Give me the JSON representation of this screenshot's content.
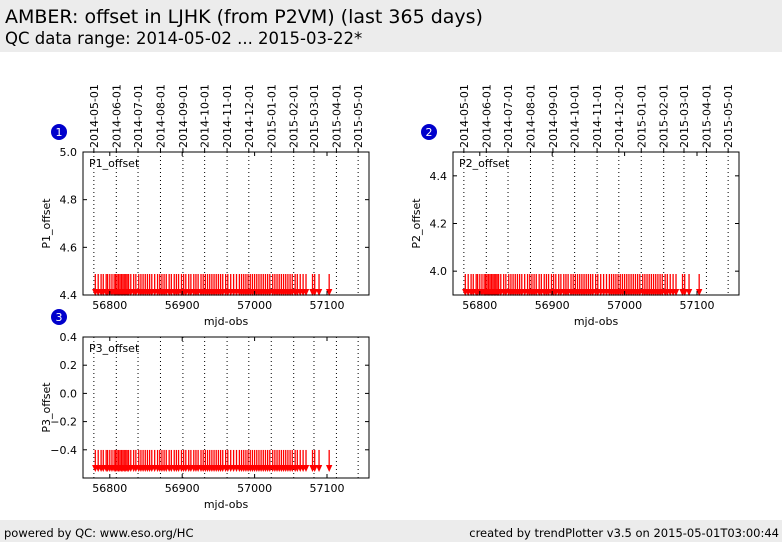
{
  "header": {
    "title": "AMBER: offset in LJHK (from P2VM) (last 365 days)",
    "subtitle": "QC data range: 2014-05-02 ... 2015-03-22*"
  },
  "footer": {
    "left": "powered by QC: www.eso.org/HC",
    "right": "created by trendPlotter v3.5 on 2015-05-01T03:00:44"
  },
  "colors": {
    "data": "#ff0000",
    "marker": "#0000cc",
    "header_bg": "#ececec"
  },
  "chart_data": [
    {
      "type": "scatter",
      "panel_number": "1",
      "title": "P1_offset",
      "xlabel": "mjd-obs",
      "ylabel": "P1_offset",
      "xlim": [
        56763,
        57158
      ],
      "ylim": [
        4.4,
        5.0
      ],
      "xticks": [
        56800,
        56900,
        57000,
        57100
      ],
      "yticks": [
        4.4,
        4.6,
        4.8,
        5.0
      ],
      "ytick_labels": [
        "4.4",
        "4.6",
        "4.8",
        "5.0"
      ],
      "date_ticks": [
        {
          "mjd": 56778,
          "label": "2014-05-01"
        },
        {
          "mjd": 56809,
          "label": "2014-06-01"
        },
        {
          "mjd": 56839,
          "label": "2014-07-01"
        },
        {
          "mjd": 56870,
          "label": "2014-08-01"
        },
        {
          "mjd": 56901,
          "label": "2014-09-01"
        },
        {
          "mjd": 56931,
          "label": "2014-10-01"
        },
        {
          "mjd": 56962,
          "label": "2014-11-01"
        },
        {
          "mjd": 56992,
          "label": "2014-12-01"
        },
        {
          "mjd": 57023,
          "label": "2015-01-01"
        },
        {
          "mjd": 57054,
          "label": "2015-02-01"
        },
        {
          "mjd": 57082,
          "label": "2015-03-01"
        },
        {
          "mjd": 57113,
          "label": "2015-04-01"
        },
        {
          "mjd": 57143,
          "label": "2015-05-01"
        }
      ],
      "grid": "vertical-dotted",
      "marker": "down-arrow",
      "y_value": 4.4,
      "points": [
        56780,
        56784,
        56788,
        56791,
        56795,
        56797,
        56800,
        56803,
        56806,
        56808,
        56810,
        56812,
        56814,
        56816,
        56818,
        56820,
        56822,
        56824,
        56826,
        56829,
        56833,
        56836,
        56840,
        56843,
        56846,
        56849,
        56852,
        56855,
        56858,
        56862,
        56866,
        56869,
        56872,
        56875,
        56878,
        56882,
        56885,
        56889,
        56892,
        56895,
        56899,
        56902,
        56905,
        56909,
        56912,
        56916,
        56919,
        56922,
        56926,
        56929,
        56932,
        56935,
        56938,
        56941,
        56944,
        56947,
        56950,
        56953,
        56956,
        56960,
        56963,
        56967,
        56971,
        56975,
        56979,
        56982,
        56985,
        56988,
        56991,
        56994,
        56997,
        57000,
        57003,
        57006,
        57009,
        57012,
        57015,
        57018,
        57021,
        57025,
        57028,
        57031,
        57034,
        57037,
        57040,
        57043,
        57046,
        57049,
        57052,
        57056,
        57059,
        57063,
        57067,
        57071,
        57080,
        57083,
        57089,
        57103
      ]
    },
    {
      "type": "scatter",
      "panel_number": "2",
      "title": "P2_offset",
      "xlabel": "mjd-obs",
      "ylabel": "P2_offset",
      "xlim": [
        56763,
        57158
      ],
      "ylim": [
        3.9,
        4.5
      ],
      "xticks": [
        56800,
        56900,
        57000,
        57100
      ],
      "yticks": [
        4.0,
        4.2,
        4.4
      ],
      "ytick_labels": [
        "4.0",
        "4.2",
        "4.4"
      ],
      "date_ticks": [
        {
          "mjd": 56778,
          "label": "2014-05-01"
        },
        {
          "mjd": 56809,
          "label": "2014-06-01"
        },
        {
          "mjd": 56839,
          "label": "2014-07-01"
        },
        {
          "mjd": 56870,
          "label": "2014-08-01"
        },
        {
          "mjd": 56901,
          "label": "2014-09-01"
        },
        {
          "mjd": 56931,
          "label": "2014-10-01"
        },
        {
          "mjd": 56962,
          "label": "2014-11-01"
        },
        {
          "mjd": 56992,
          "label": "2014-12-01"
        },
        {
          "mjd": 57023,
          "label": "2015-01-01"
        },
        {
          "mjd": 57054,
          "label": "2015-02-01"
        },
        {
          "mjd": 57082,
          "label": "2015-03-01"
        },
        {
          "mjd": 57113,
          "label": "2015-04-01"
        },
        {
          "mjd": 57143,
          "label": "2015-05-01"
        }
      ],
      "grid": "vertical-dotted",
      "marker": "down-arrow",
      "y_value": 3.9,
      "points": [
        56780,
        56784,
        56788,
        56791,
        56795,
        56797,
        56800,
        56803,
        56806,
        56808,
        56810,
        56812,
        56814,
        56816,
        56818,
        56820,
        56822,
        56824,
        56826,
        56829,
        56833,
        56836,
        56840,
        56843,
        56846,
        56849,
        56852,
        56855,
        56858,
        56862,
        56866,
        56869,
        56872,
        56875,
        56878,
        56882,
        56885,
        56889,
        56892,
        56895,
        56899,
        56902,
        56905,
        56909,
        56912,
        56916,
        56919,
        56922,
        56926,
        56929,
        56932,
        56935,
        56938,
        56941,
        56944,
        56947,
        56950,
        56953,
        56956,
        56960,
        56963,
        56967,
        56971,
        56975,
        56979,
        56982,
        56985,
        56988,
        56991,
        56994,
        56997,
        57000,
        57003,
        57006,
        57009,
        57012,
        57015,
        57018,
        57021,
        57025,
        57028,
        57031,
        57034,
        57037,
        57040,
        57043,
        57046,
        57049,
        57052,
        57056,
        57059,
        57063,
        57067,
        57071,
        57080,
        57083,
        57089,
        57103
      ]
    },
    {
      "type": "scatter",
      "panel_number": "3",
      "title": "P3_offset",
      "xlabel": "mjd-obs",
      "ylabel": "P3_offset",
      "xlim": [
        56763,
        57158
      ],
      "ylim": [
        -0.6,
        0.4
      ],
      "xticks": [
        56800,
        56900,
        57000,
        57100
      ],
      "yticks": [
        -0.4,
        -0.2,
        0.0,
        0.2,
        0.4
      ],
      "ytick_labels": [
        "−0.4",
        "−0.2",
        "0.0",
        "0.2",
        "0.4"
      ],
      "date_ticks": [
        {
          "mjd": 56778,
          "label": "2014-05-01"
        },
        {
          "mjd": 56809,
          "label": "2014-06-01"
        },
        {
          "mjd": 56839,
          "label": "2014-07-01"
        },
        {
          "mjd": 56870,
          "label": "2014-08-01"
        },
        {
          "mjd": 56901,
          "label": "2014-09-01"
        },
        {
          "mjd": 56931,
          "label": "2014-10-01"
        },
        {
          "mjd": 56962,
          "label": "2014-11-01"
        },
        {
          "mjd": 56992,
          "label": "2014-12-01"
        },
        {
          "mjd": 57023,
          "label": "2015-01-01"
        },
        {
          "mjd": 57054,
          "label": "2015-02-01"
        },
        {
          "mjd": 57082,
          "label": "2015-03-01"
        },
        {
          "mjd": 57113,
          "label": "2015-04-01"
        },
        {
          "mjd": 57143,
          "label": "2015-05-01"
        }
      ],
      "grid": "vertical-dotted",
      "marker": "down-arrow",
      "y_value": -0.55,
      "points": [
        56780,
        56784,
        56788,
        56791,
        56795,
        56797,
        56800,
        56803,
        56806,
        56808,
        56810,
        56812,
        56814,
        56816,
        56818,
        56820,
        56822,
        56824,
        56826,
        56829,
        56833,
        56836,
        56840,
        56843,
        56846,
        56849,
        56852,
        56855,
        56858,
        56862,
        56866,
        56869,
        56872,
        56875,
        56878,
        56882,
        56885,
        56889,
        56892,
        56895,
        56899,
        56902,
        56905,
        56909,
        56912,
        56916,
        56919,
        56922,
        56926,
        56929,
        56932,
        56935,
        56938,
        56941,
        56944,
        56947,
        56950,
        56953,
        56956,
        56960,
        56963,
        56967,
        56971,
        56975,
        56979,
        56982,
        56985,
        56988,
        56991,
        56994,
        56997,
        57000,
        57003,
        57006,
        57009,
        57012,
        57015,
        57018,
        57021,
        57025,
        57028,
        57031,
        57034,
        57037,
        57040,
        57043,
        57046,
        57049,
        57052,
        57056,
        57059,
        57063,
        57067,
        57071,
        57080,
        57083,
        57089,
        57103
      ]
    }
  ]
}
